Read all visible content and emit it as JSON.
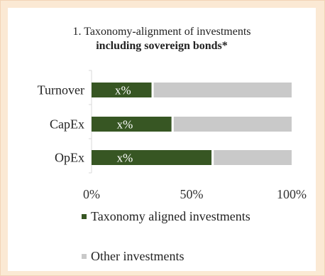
{
  "chart_data": {
    "type": "bar",
    "orientation": "horizontal",
    "stacked": true,
    "title": "1. Taxonomy-alignment of investments",
    "subtitle": "including sovereign bonds*",
    "categories": [
      "Turnover",
      "CapEx",
      "OpEx"
    ],
    "series": [
      {
        "name": "Taxonomy aligned investments",
        "values": [
          30,
          40,
          60
        ],
        "color": "#375623",
        "data_labels": [
          "x%",
          "x%",
          "x%"
        ]
      },
      {
        "name": "Other investments",
        "values": [
          70,
          60,
          40
        ],
        "color": "#c9c9c9"
      }
    ],
    "xlim": [
      0,
      100
    ],
    "x_ticks": [
      "0%",
      "50%",
      "100%"
    ],
    "grid": false,
    "legend_position": "bottom"
  }
}
